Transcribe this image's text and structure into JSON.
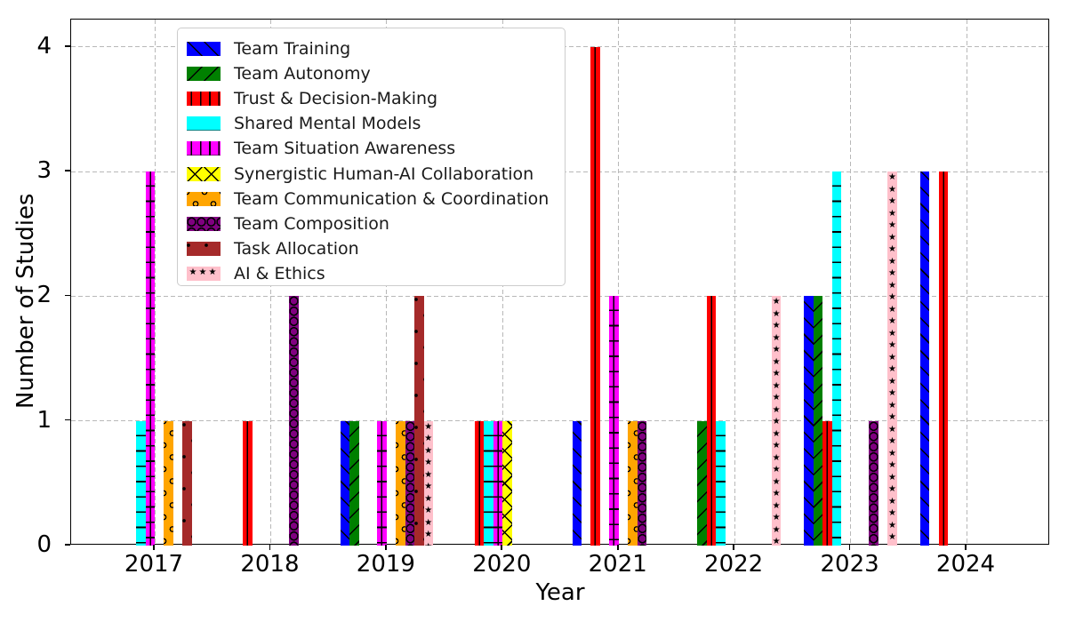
{
  "chart_data": {
    "type": "bar",
    "title": "",
    "xlabel": "Year",
    "ylabel": "Number of Studies",
    "categories": [
      2017,
      2018,
      2019,
      2020,
      2021,
      2022,
      2023,
      2024
    ],
    "x_tick_labels": [
      "2017",
      "2018",
      "2019",
      "2020",
      "2021",
      "2022",
      "2023",
      "2024"
    ],
    "y_ticks": [
      0,
      1,
      2,
      3,
      4
    ],
    "y_tick_labels": [
      "0",
      "1",
      "2",
      "3",
      "4"
    ],
    "ylim": [
      0,
      4.22
    ],
    "grid": "dashed-both-axes",
    "legend_position": "upper-left",
    "bar_layout": "grouped-10-per-year",
    "hatch_color": "#000000",
    "series": [
      {
        "name": "Team Training",
        "color": "#0000ff",
        "hatch": "slash",
        "values": [
          0,
          0,
          1,
          0,
          1,
          0,
          2,
          3
        ]
      },
      {
        "name": "Team Autonomy",
        "color": "#008000",
        "hatch": "backslash",
        "values": [
          0,
          0,
          1,
          0,
          0,
          1,
          2,
          0
        ]
      },
      {
        "name": "Trust & Decision-Making",
        "color": "#ff0000",
        "hatch": "vert",
        "values": [
          0,
          1,
          0,
          1,
          4,
          2,
          1,
          3
        ]
      },
      {
        "name": "Shared Mental Models",
        "color": "#00ffff",
        "hatch": "horiz",
        "values": [
          1,
          0,
          0,
          1,
          0,
          1,
          3,
          0
        ]
      },
      {
        "name": "Team Situation Awareness",
        "color": "#ff00ff",
        "hatch": "plus",
        "values": [
          3,
          0,
          1,
          1,
          2,
          0,
          0,
          0
        ]
      },
      {
        "name": "Synergistic Human-AI Collaboration",
        "color": "#ffff00",
        "hatch": "x",
        "values": [
          0,
          0,
          0,
          1,
          0,
          0,
          0,
          0
        ]
      },
      {
        "name": "Team Communication & Coordination",
        "color": "#ffa500",
        "hatch": "o",
        "values": [
          1,
          0,
          1,
          0,
          1,
          0,
          0,
          0
        ]
      },
      {
        "name": "Team Composition",
        "color": "#800080",
        "hatch": "O",
        "values": [
          0,
          2,
          1,
          0,
          1,
          0,
          1,
          0
        ]
      },
      {
        "name": "Task Allocation",
        "color": "#a52a2a",
        "hatch": "dot",
        "values": [
          1,
          0,
          2,
          0,
          0,
          0,
          0,
          0
        ]
      },
      {
        "name": "AI & Ethics",
        "color": "#ffc0cb",
        "hatch": "star",
        "values": [
          0,
          0,
          1,
          0,
          0,
          2,
          3,
          0
        ]
      }
    ]
  }
}
